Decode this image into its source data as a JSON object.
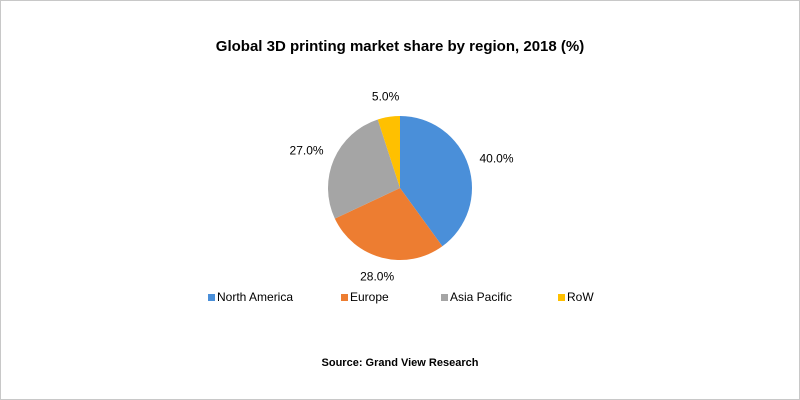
{
  "chart_data": {
    "type": "pie",
    "title": "Global 3D printing market share by region, 2018 (%)",
    "categories": [
      "North America",
      "Europe",
      "Asia Pacific",
      "RoW"
    ],
    "values": [
      40,
      28,
      27,
      5
    ],
    "value_labels": [
      "40.0%",
      "28.0%",
      "27.0%",
      "5.0%"
    ],
    "colors": [
      "#4a8fd9",
      "#ed7d31",
      "#a5a5a5",
      "#ffc000"
    ],
    "legend": "bottom",
    "source": "Source: Grand View Research"
  }
}
